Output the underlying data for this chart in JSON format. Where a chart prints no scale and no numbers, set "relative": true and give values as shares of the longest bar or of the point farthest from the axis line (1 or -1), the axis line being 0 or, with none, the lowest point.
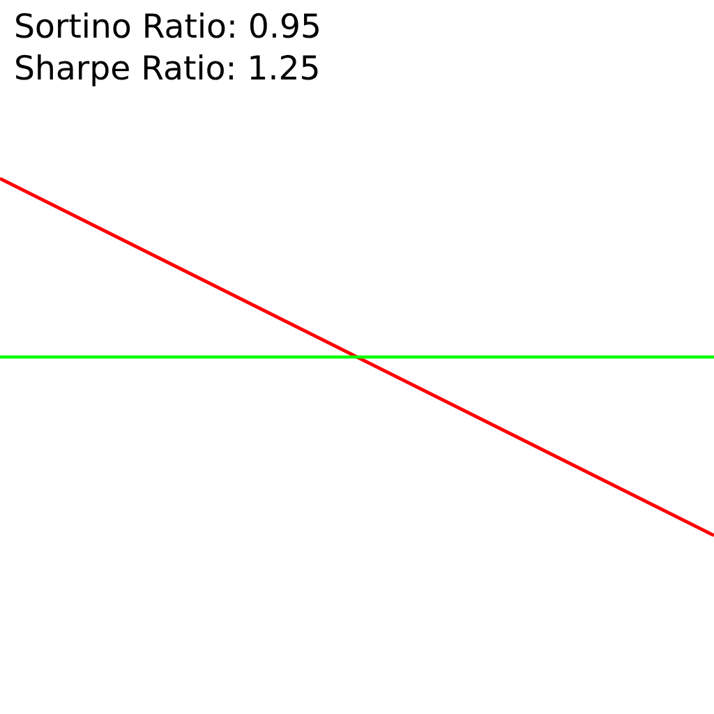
{
  "chart_data": {
    "type": "line",
    "relative": true,
    "categories": [
      null,
      null
    ],
    "series": [
      {
        "color": "#ff0000",
        "values": [
          1,
          0
        ]
      },
      {
        "color": "#00ff00",
        "values": [
          0.5,
          0.5
        ]
      }
    ],
    "annotations": [
      "Sortino Ratio: 0.95",
      "Sharpe Ratio: 1.25"
    ]
  }
}
